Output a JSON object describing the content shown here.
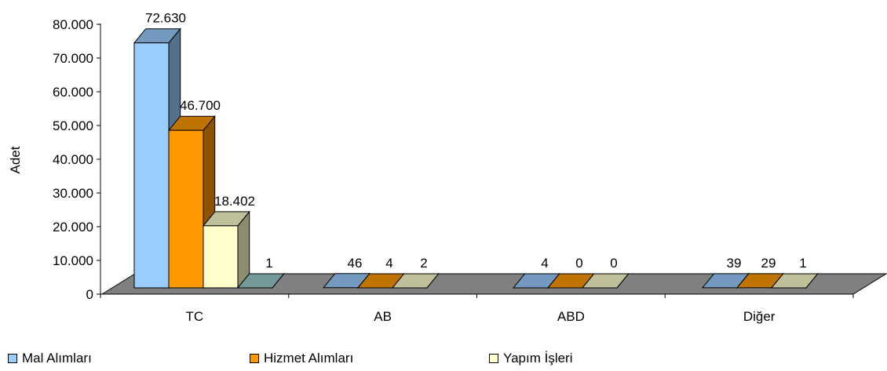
{
  "chart_data": {
    "type": "bar",
    "categories": [
      "TC",
      "AB",
      "ABD",
      "Diğer"
    ],
    "series": [
      {
        "name": "Mal Alımları",
        "values": [
          72630,
          46,
          4,
          39
        ],
        "labels": [
          "72.630",
          "46",
          "4",
          "39"
        ],
        "color": "#99CCFF"
      },
      {
        "name": "Hizmet Alımları",
        "values": [
          46700,
          4,
          0,
          29
        ],
        "labels": [
          "46.700",
          "4",
          "0",
          "29"
        ],
        "color": "#FF9900"
      },
      {
        "name": "Yapım İşleri",
        "values": [
          18402,
          2,
          0,
          1
        ],
        "labels": [
          "18.402",
          "2",
          "0",
          "1"
        ],
        "color": "#FFFFCC"
      },
      {
        "values": [
          1,
          null,
          null,
          null
        ],
        "labels": [
          "1",
          "",
          "",
          ""
        ],
        "color": "#99CCCC"
      }
    ],
    "ylabel": "Adet",
    "xlabel": "",
    "ylim": [
      0,
      80000
    ],
    "yticks": [
      "0",
      "10.000",
      "20.000",
      "30.000",
      "40.000",
      "50.000",
      "60.000",
      "70.000",
      "80.000"
    ],
    "floor_color": "#808080",
    "legend_position": "bottom",
    "style": "3d-column"
  }
}
